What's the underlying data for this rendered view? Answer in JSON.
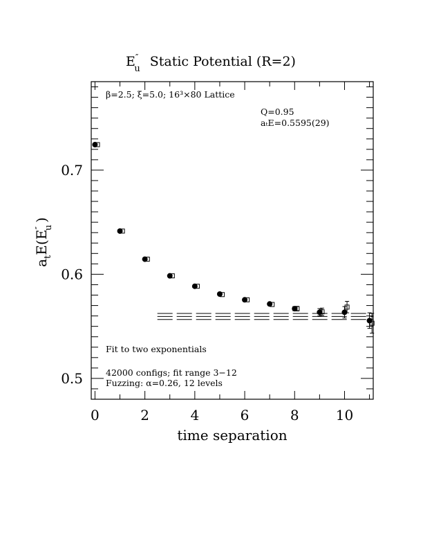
{
  "chart_data": {
    "type": "scatter",
    "title": {
      "main": "E",
      "sup": "″",
      "sub": "u",
      "rest": "Static Potential (R=2)"
    },
    "xlabel": "time separation",
    "ylabel": {
      "main": "a",
      "sub_t": "t",
      "rest": "E(E",
      "sup": "″",
      "sub": "u",
      "end": ")"
    },
    "xlim": [
      -0.15,
      11.15
    ],
    "ylim": [
      0.48,
      0.785
    ],
    "x_ticks": [
      0,
      2,
      4,
      6,
      8,
      10
    ],
    "x_tick_labels": [
      "0",
      "2",
      "4",
      "6",
      "8",
      "10"
    ],
    "y_ticks": [
      0.5,
      0.6,
      0.7
    ],
    "y_tick_labels": [
      "0.5",
      "0.6",
      "0.7"
    ],
    "series": [
      {
        "name": "filled circles",
        "marker": "filled-circle",
        "x": [
          0,
          1,
          2,
          3,
          4,
          5,
          6,
          7,
          8,
          9,
          10,
          11
        ],
        "y": [
          0.7245,
          0.6415,
          0.6145,
          0.5985,
          0.5885,
          0.581,
          0.5755,
          0.5715,
          0.567,
          0.5635,
          0.5635,
          0.5555
        ],
        "err": [
          0.001,
          0.001,
          0.001,
          0.001,
          0.001,
          0.0012,
          0.0013,
          0.0015,
          0.002,
          0.0035,
          0.0055,
          0.0075
        ]
      },
      {
        "name": "open squares",
        "marker": "open-square",
        "x": [
          0.1,
          1.1,
          2.1,
          3.1,
          4.1,
          5.1,
          6.1,
          7.1,
          8.1,
          9.1,
          10.1,
          11.1
        ],
        "y": [
          0.7245,
          0.6415,
          0.6145,
          0.5985,
          0.5885,
          0.5805,
          0.5755,
          0.571,
          0.567,
          0.564,
          0.5685,
          0.553
        ],
        "err": [
          0.001,
          0.001,
          0.001,
          0.001,
          0.001,
          0.0012,
          0.0013,
          0.0015,
          0.0022,
          0.0035,
          0.0055,
          0.0095
        ]
      }
    ],
    "fit_lines": {
      "x_start": 2.5,
      "x_end": 11.15,
      "center": 0.5595,
      "error": 0.0029
    },
    "annotations": {
      "lattice": "β=2.5; ξ=5.0; 16³×80 Lattice",
      "q": "Q=0.95",
      "ate": "aₜE=0.5595(29)",
      "fit": "Fit to two exponentials",
      "configs": "42000 configs; fit range 3−12",
      "fuzzing": "Fuzzing: α=0.26, 12 levels"
    }
  }
}
